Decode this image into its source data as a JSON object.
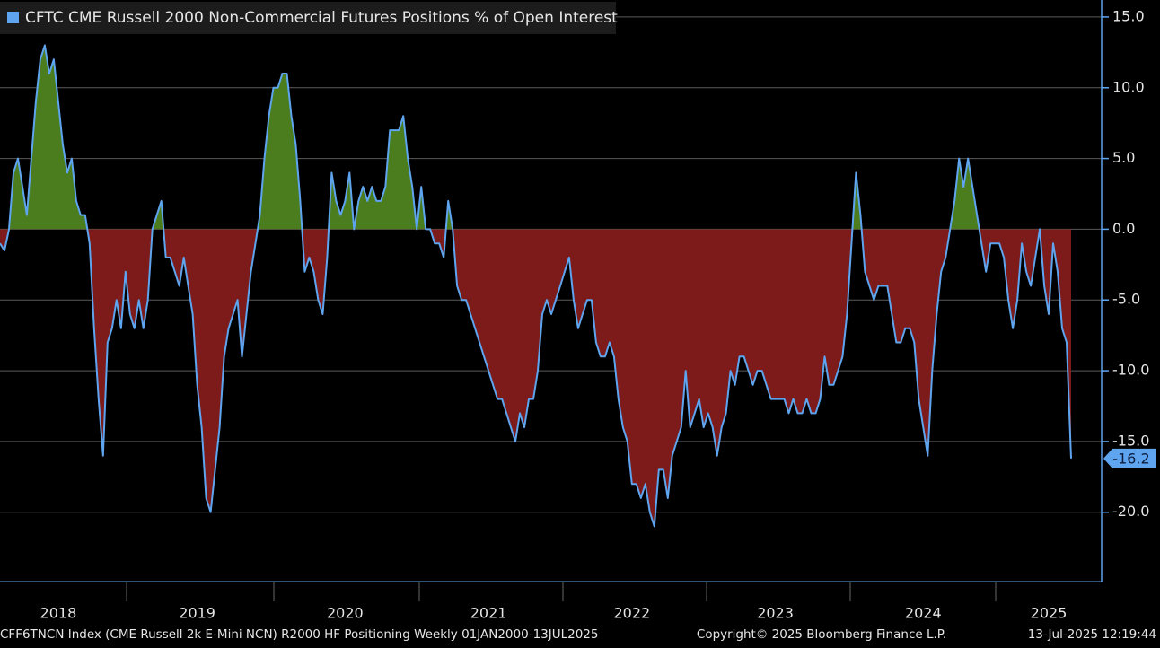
{
  "chart_data": {
    "type": "area",
    "series": [
      {
        "name": "CFTC CME Russell 2000 Non-Commercial Futures Positions % of Open Interest",
        "color": "#5ea4ee",
        "positive_color": "#4b7d1f",
        "negative_color": "#7d1a1a",
        "values": [
          -1,
          -1.5,
          0,
          4,
          5,
          3,
          1,
          5,
          9,
          12,
          13,
          11,
          12,
          9,
          6,
          4,
          5,
          2,
          1,
          1,
          -1,
          -7,
          -12,
          -16,
          -8,
          -7,
          -5,
          -7,
          -3,
          -6,
          -7,
          -5,
          -7,
          -5,
          0,
          1,
          2,
          -2,
          -2,
          -3,
          -4,
          -2,
          -4,
          -6,
          -11,
          -14,
          -19,
          -20,
          -17,
          -14,
          -9,
          -7,
          -6,
          -5,
          -9,
          -6,
          -3,
          -1,
          1,
          5,
          8,
          10,
          10,
          11,
          11,
          8,
          6,
          2,
          -3,
          -2,
          -3,
          -5,
          -6,
          -2,
          4,
          2,
          1,
          2,
          4,
          0,
          2,
          3,
          2,
          3,
          2,
          2,
          3,
          7,
          7,
          7,
          8,
          5,
          3,
          0,
          3,
          0,
          0,
          -1,
          -1,
          -2,
          2,
          0,
          -4,
          -5,
          -5,
          -6,
          -7,
          -8,
          -9,
          -10,
          -11,
          -12,
          -12,
          -13,
          -14,
          -15,
          -13,
          -14,
          -12,
          -12,
          -10,
          -6,
          -5,
          -6,
          -5,
          -4,
          -3,
          -2,
          -5,
          -7,
          -6,
          -5,
          -5,
          -8,
          -9,
          -9,
          -8,
          -9,
          -12,
          -14,
          -15,
          -18,
          -18,
          -19,
          -18,
          -20,
          -21,
          -17,
          -17,
          -19,
          -16,
          -15,
          -14,
          -10,
          -14,
          -13,
          -12,
          -14,
          -13,
          -14,
          -16,
          -14,
          -13,
          -10,
          -11,
          -9,
          -9,
          -10,
          -11,
          -10,
          -10,
          -11,
          -12,
          -12,
          -12,
          -12,
          -13,
          -12,
          -13,
          -13,
          -12,
          -13,
          -13,
          -12,
          -9,
          -11,
          -11,
          -10,
          -9,
          -6,
          -1,
          4,
          1,
          -3,
          -4,
          -5,
          -4,
          -4,
          -4,
          -6,
          -8,
          -8,
          -7,
          -7,
          -8,
          -12,
          -14,
          -16,
          -10,
          -6,
          -3,
          -2,
          0,
          2,
          5,
          3,
          5,
          3,
          1,
          -1,
          -3,
          -1,
          -1,
          -1,
          -2,
          -5,
          -7,
          -5,
          -1,
          -3,
          -4,
          -2,
          0,
          -4,
          -6,
          -1,
          -3,
          -7,
          -8,
          -16.2
        ]
      }
    ],
    "categories": [
      null,
      null,
      null,
      null,
      null,
      null,
      null,
      null,
      null,
      null,
      null,
      null,
      null,
      "2018",
      null,
      null,
      null,
      null,
      null,
      null,
      null,
      null,
      null,
      null,
      null,
      null,
      null,
      null,
      null,
      null,
      null,
      null,
      null,
      null,
      null,
      null,
      null,
      null,
      null,
      null,
      null,
      null,
      null,
      null,
      "2019",
      null,
      null,
      null,
      null,
      null,
      null,
      null,
      null,
      null,
      null,
      null,
      null,
      null,
      null,
      null,
      null,
      null,
      null,
      null,
      null,
      null,
      null,
      null,
      null,
      null,
      null,
      null,
      null,
      null,
      null,
      null,
      null,
      "2020",
      null,
      null,
      null,
      null,
      null,
      null,
      null,
      null,
      null,
      null,
      null,
      null,
      null,
      null,
      null,
      null,
      null,
      null,
      null,
      null,
      null,
      null,
      null,
      null,
      null,
      null,
      null,
      null,
      null,
      null,
      null,
      "2021",
      null,
      null,
      null,
      null,
      null,
      null,
      null,
      null,
      null,
      null,
      null,
      null,
      null,
      null,
      null,
      null,
      null,
      null,
      null,
      null,
      null,
      null,
      null,
      null,
      null,
      null,
      null,
      null,
      null,
      null,
      null,
      "2022",
      null,
      null,
      null,
      null,
      null,
      null,
      null,
      null,
      null,
      null,
      null,
      null,
      null,
      null,
      null,
      null,
      null,
      null,
      null,
      null,
      null,
      null,
      null,
      null,
      null,
      null,
      null,
      null,
      null,
      null,
      null,
      "2023",
      null,
      null,
      null,
      null,
      null,
      null,
      null,
      null,
      null,
      null,
      null,
      null,
      null,
      null,
      null,
      null,
      null,
      null,
      null,
      null,
      null,
      null,
      null,
      null,
      null,
      null,
      null,
      null,
      null,
      null,
      null,
      null,
      "2024",
      null,
      null,
      null,
      null,
      null,
      null,
      null,
      null,
      null,
      null,
      null,
      null,
      null,
      null,
      null,
      null,
      null,
      null,
      null,
      null,
      null,
      null,
      null,
      null,
      null,
      null,
      null,
      "2025",
      null,
      null,
      null,
      null,
      null
    ],
    "ylim": [
      -24.9,
      16.2
    ],
    "yticks": [
      {
        "value": 15,
        "label": "15.0"
      },
      {
        "value": 10,
        "label": "10.0"
      },
      {
        "value": 5,
        "label": "5.0"
      },
      {
        "value": 0,
        "label": "0.0"
      },
      {
        "value": -5,
        "label": "-5.0"
      },
      {
        "value": -10,
        "label": "-10.0"
      },
      {
        "value": -15,
        "label": "-15.0"
      },
      {
        "value": -20,
        "label": "-20.0"
      }
    ],
    "grid": true,
    "footer": {
      "left": "CFF6TNCN Index (CME Russell 2k E-Mini NCN) R2000 HF Positioning  Weekly 01JAN2000-13JUL2025",
      "center": "Copyright© 2025 Bloomberg Finance L.P.",
      "right": "13-Jul-2025 12:19:44"
    }
  }
}
